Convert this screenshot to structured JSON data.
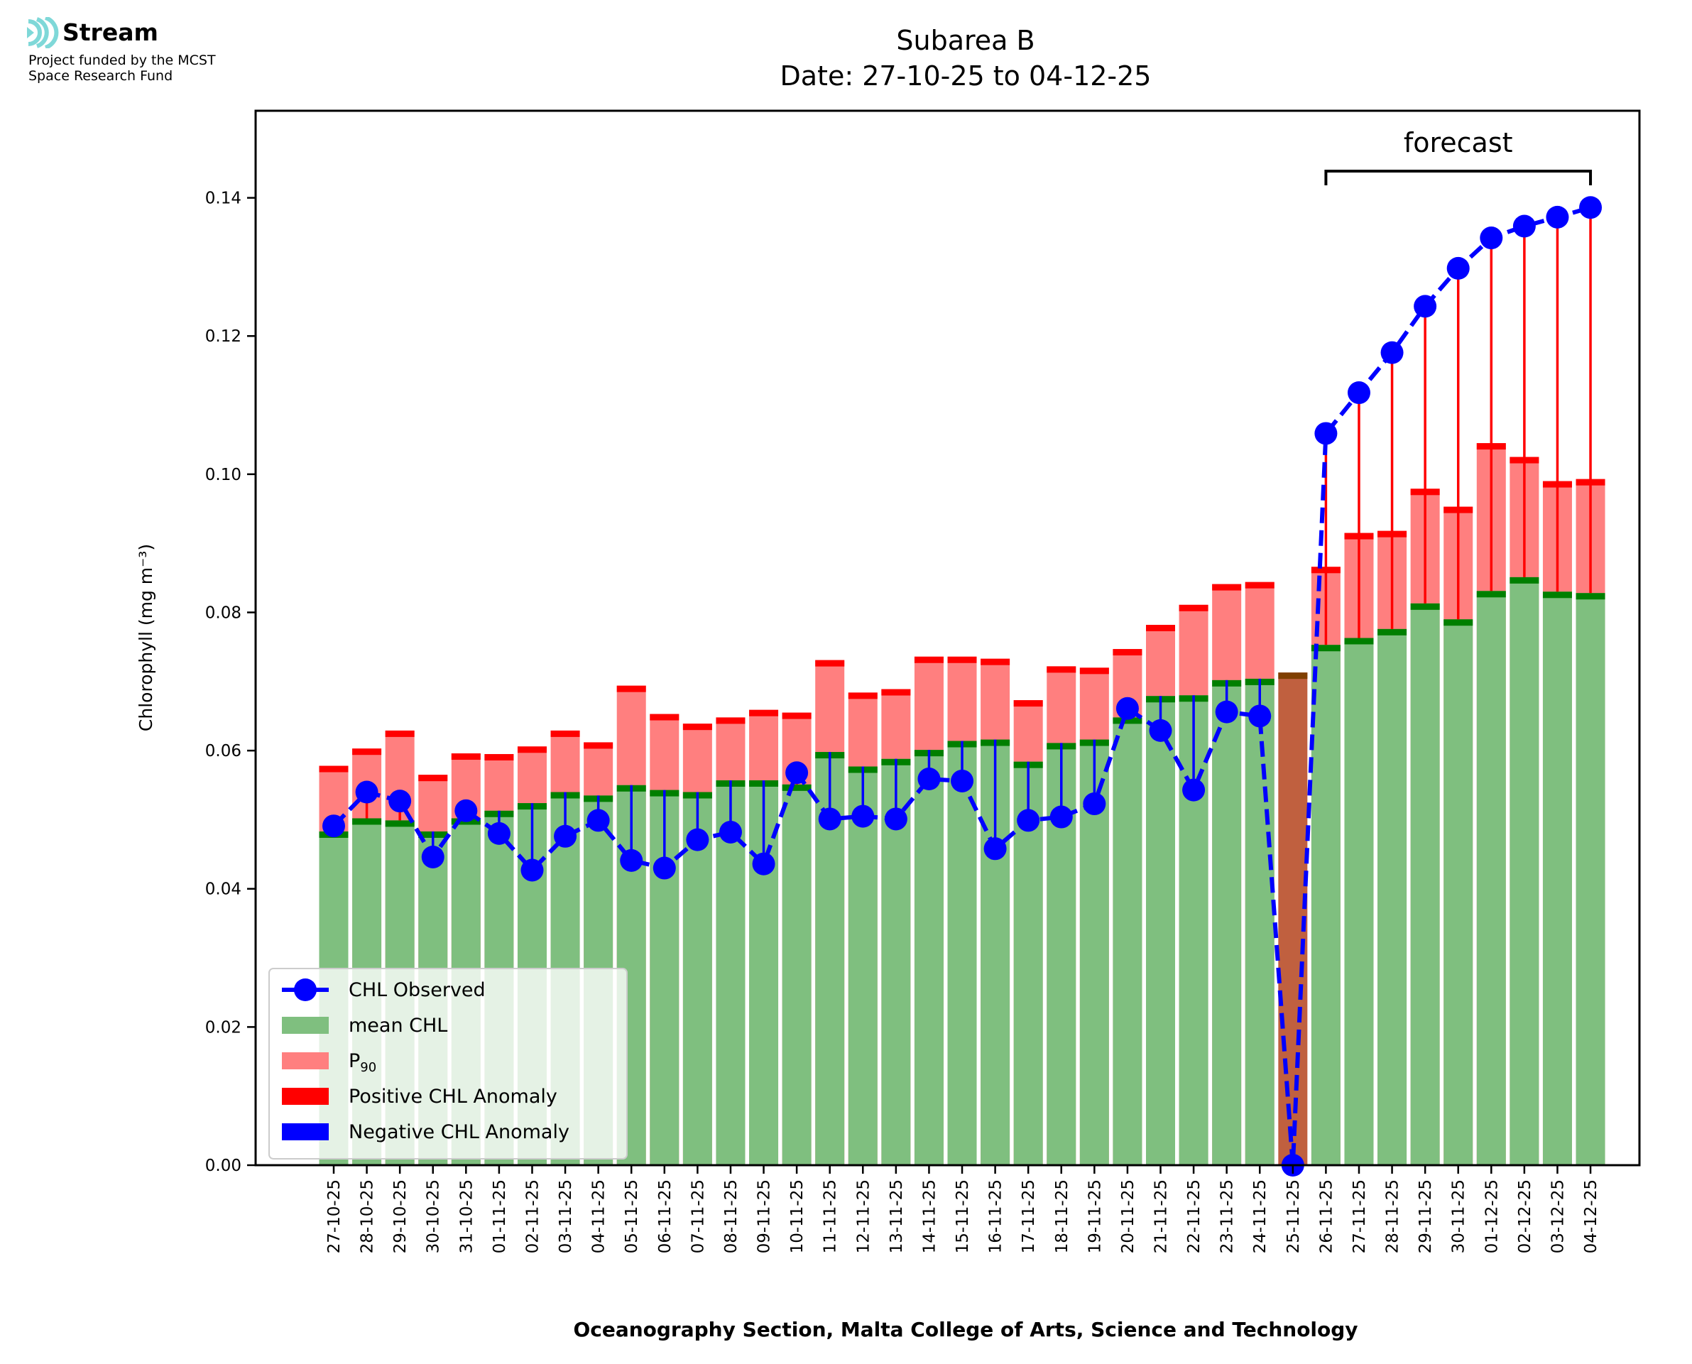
{
  "branding": {
    "name": "Stream",
    "subtitle_line1": "Project funded by the MCST",
    "subtitle_line2": "Space Research Fund",
    "accent_color": "#7fd8d8"
  },
  "chart_data": {
    "type": "bar",
    "title": "Subarea B",
    "subtitle": "Date: 27-10-25 to 04-12-25",
    "xlabel": "Oceanography Section, Malta College of Arts, Science and Technology",
    "ylabel": "Chlorophyll (mg m⁻³)",
    "ylim": [
      0,
      0.1526
    ],
    "yticks": [
      "0.00",
      "0.02",
      "0.04",
      "0.06",
      "0.08",
      "0.10",
      "0.12",
      "0.14"
    ],
    "ytick_values": [
      0,
      0.02,
      0.04,
      0.06,
      0.08,
      0.1,
      0.12,
      0.14
    ],
    "grid": false,
    "legend_position": "lower-left",
    "categories": [
      "27-10-25",
      "28-10-25",
      "29-10-25",
      "30-10-25",
      "31-10-25",
      "01-11-25",
      "02-11-25",
      "03-11-25",
      "04-11-25",
      "05-11-25",
      "06-11-25",
      "07-11-25",
      "08-11-25",
      "09-11-25",
      "10-11-25",
      "11-11-25",
      "12-11-25",
      "13-11-25",
      "14-11-25",
      "15-11-25",
      "16-11-25",
      "17-11-25",
      "18-11-25",
      "19-11-25",
      "20-11-25",
      "21-11-25",
      "22-11-25",
      "23-11-25",
      "24-11-25",
      "25-11-25",
      "26-11-25",
      "27-11-25",
      "28-11-25",
      "29-11-25",
      "30-11-25",
      "01-12-25",
      "02-12-25",
      "03-12-25",
      "04-12-25"
    ],
    "series": [
      {
        "name": "mean CHL",
        "color": "#7fbf7f",
        "values": [
          0.0483,
          0.0502,
          0.0499,
          0.0483,
          0.0502,
          0.0513,
          0.0524,
          0.054,
          0.0535,
          0.055,
          0.0543,
          0.054,
          0.0557,
          0.0557,
          0.0551,
          0.0598,
          0.0577,
          0.0588,
          0.0601,
          0.0614,
          0.0616,
          0.0584,
          0.0611,
          0.0616,
          0.0648,
          0.0679,
          0.068,
          0.0702,
          0.0704,
          0.0713,
          0.0753,
          0.0763,
          0.0776,
          0.0813,
          0.079,
          0.0831,
          0.0851,
          0.083,
          0.0828
        ]
      },
      {
        "name": "P₉₀",
        "color": "#ff7f7f",
        "values": [
          0.0578,
          0.0603,
          0.0629,
          0.0565,
          0.0596,
          0.0595,
          0.0606,
          0.0629,
          0.0612,
          0.0694,
          0.0653,
          0.0639,
          0.0648,
          0.0659,
          0.0655,
          0.0731,
          0.0684,
          0.0689,
          0.0736,
          0.0736,
          0.0733,
          0.0673,
          0.0722,
          0.072,
          0.0747,
          0.0782,
          0.0811,
          0.0841,
          0.0844,
          0.0713,
          0.0866,
          0.0915,
          0.0918,
          0.0979,
          0.0953,
          0.1045,
          0.1025,
          0.099,
          0.0993
        ]
      },
      {
        "name": "CHL Observed",
        "color": "#0000ff",
        "values": [
          0.0491,
          0.054,
          0.0527,
          0.0446,
          0.0513,
          0.048,
          0.0427,
          0.0476,
          0.0499,
          0.0441,
          0.043,
          0.0471,
          0.0482,
          0.0436,
          0.0568,
          0.0501,
          0.0505,
          0.0501,
          0.0559,
          0.0556,
          0.0458,
          0.0499,
          0.0504,
          0.0523,
          0.0661,
          0.0629,
          0.0543,
          0.0656,
          0.065,
          0.0,
          0.1059,
          0.1118,
          0.1176,
          0.1243,
          0.1298,
          0.1342,
          0.1359,
          0.1372,
          0.1386
        ]
      }
    ],
    "legend": [
      {
        "label": "CHL Observed",
        "kind": "line-marker",
        "color": "#0000ff"
      },
      {
        "label": "mean CHL",
        "kind": "patch",
        "color": "#7fbf7f"
      },
      {
        "label": "P",
        "sub": "90",
        "kind": "patch",
        "color": "#ff7f7f"
      },
      {
        "label": "Positive CHL Anomaly",
        "kind": "patch",
        "color": "#ff0000"
      },
      {
        "label": "Negative CHL Anomaly",
        "kind": "patch",
        "color": "#0000ff"
      }
    ],
    "annotations": {
      "forecast_label": "forecast",
      "forecast_start": "26-11-25",
      "forecast_end": "04-12-25",
      "missing_day": "25-11-25"
    },
    "colors": {
      "mean_cap": "#007f00",
      "p90_cap": "#ff0000",
      "positive_anomaly": "#ff0000",
      "negative_anomaly": "#0000ff",
      "missing_bar": "#c0603f",
      "missing_cap": "#7f3f00"
    }
  }
}
